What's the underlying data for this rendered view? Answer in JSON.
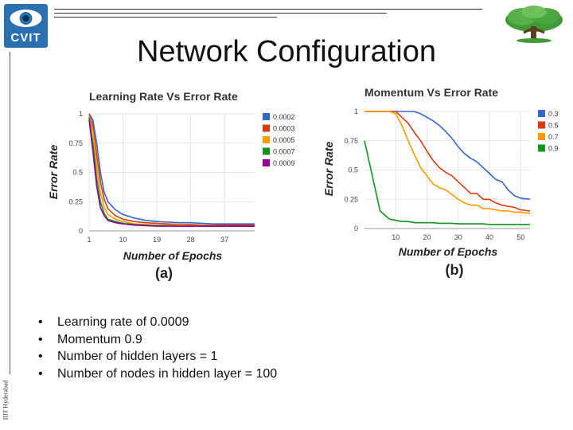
{
  "header": {
    "logo_text": "CVIT",
    "title": "Network Configuration"
  },
  "sidebar": {
    "vertical_text": "IIIT Hyderabad"
  },
  "bullets": [
    "Learning rate of 0.0009",
    "Momentum 0.9",
    "Number of hidden layers = 1",
    "Number of nodes in hidden layer = 100"
  ],
  "bullet_symbol": "•",
  "chart_data": [
    {
      "type": "line",
      "title": "Learning Rate Vs Error Rate",
      "xlabel": "Number of Epochs",
      "ylabel": "Error Rate",
      "caption": "(a)",
      "x_ticks": [
        "1",
        "10",
        "19",
        "28",
        "37"
      ],
      "x_tick_values": [
        1,
        10,
        19,
        28,
        37
      ],
      "y_ticks": [
        "0",
        "0.25",
        "0.5",
        "0.75",
        "1"
      ],
      "xlim": [
        1,
        45
      ],
      "ylim": [
        0,
        1
      ],
      "legend": "right",
      "grid": true,
      "x": [
        1,
        2,
        3,
        4,
        5,
        6,
        8,
        10,
        13,
        16,
        19,
        22,
        25,
        28,
        31,
        34,
        37,
        40,
        45
      ],
      "series": [
        {
          "name": "0.0002",
          "color": "#3366cc",
          "values": [
            1.0,
            0.95,
            0.75,
            0.5,
            0.33,
            0.25,
            0.18,
            0.14,
            0.11,
            0.09,
            0.08,
            0.075,
            0.07,
            0.07,
            0.065,
            0.06,
            0.06,
            0.06,
            0.06
          ]
        },
        {
          "name": "0.0003",
          "color": "#dc3912",
          "values": [
            1.0,
            0.9,
            0.65,
            0.42,
            0.27,
            0.19,
            0.13,
            0.1,
            0.08,
            0.07,
            0.065,
            0.06,
            0.055,
            0.055,
            0.05,
            0.05,
            0.05,
            0.05,
            0.05
          ]
        },
        {
          "name": "0.0005",
          "color": "#ff9900",
          "values": [
            0.98,
            0.85,
            0.55,
            0.33,
            0.2,
            0.14,
            0.1,
            0.08,
            0.06,
            0.055,
            0.05,
            0.05,
            0.05,
            0.045,
            0.045,
            0.045,
            0.04,
            0.04,
            0.04
          ]
        },
        {
          "name": "0.0007",
          "color": "#109618",
          "values": [
            0.97,
            0.75,
            0.45,
            0.25,
            0.15,
            0.1,
            0.08,
            0.065,
            0.055,
            0.05,
            0.045,
            0.045,
            0.04,
            0.04,
            0.04,
            0.04,
            0.04,
            0.04,
            0.04
          ]
        },
        {
          "name": "0.0009",
          "color": "#990099",
          "values": [
            0.95,
            0.68,
            0.38,
            0.2,
            0.13,
            0.09,
            0.07,
            0.06,
            0.05,
            0.045,
            0.04,
            0.04,
            0.04,
            0.04,
            0.04,
            0.04,
            0.04,
            0.04,
            0.04
          ]
        }
      ]
    },
    {
      "type": "line",
      "title": "Momentum Vs Error Rate",
      "xlabel": "Number of Epochs",
      "ylabel": "Error Rate",
      "caption": "(b)",
      "x_ticks": [
        "10",
        "20",
        "30",
        "40",
        "50"
      ],
      "x_tick_values": [
        10,
        20,
        30,
        40,
        50
      ],
      "y_ticks": [
        "0",
        "0.25",
        "0.5",
        "0.75",
        "1"
      ],
      "xlim": [
        0,
        53
      ],
      "ylim": [
        0,
        1
      ],
      "legend": "right",
      "grid": true,
      "x": [
        0,
        5,
        8,
        10,
        12,
        14,
        16,
        18,
        20,
        22,
        24,
        26,
        28,
        30,
        32,
        34,
        36,
        38,
        40,
        42,
        44,
        46,
        48,
        50,
        53
      ],
      "series": [
        {
          "name": "0.3",
          "color": "#3366cc",
          "values": [
            1.0,
            1.0,
            1.0,
            1.0,
            1.0,
            1.0,
            1.0,
            0.98,
            0.95,
            0.92,
            0.88,
            0.83,
            0.77,
            0.7,
            0.64,
            0.6,
            0.57,
            0.52,
            0.47,
            0.42,
            0.4,
            0.33,
            0.28,
            0.26,
            0.25
          ]
        },
        {
          "name": "0.5",
          "color": "#dc3912",
          "values": [
            1.0,
            1.0,
            1.0,
            1.0,
            0.95,
            0.9,
            0.82,
            0.75,
            0.66,
            0.58,
            0.52,
            0.48,
            0.45,
            0.4,
            0.35,
            0.3,
            0.3,
            0.25,
            0.25,
            0.22,
            0.2,
            0.19,
            0.18,
            0.16,
            0.15
          ]
        },
        {
          "name": "0.7",
          "color": "#ff9900",
          "values": [
            1.0,
            1.0,
            1.0,
            0.98,
            0.88,
            0.75,
            0.63,
            0.52,
            0.45,
            0.38,
            0.35,
            0.33,
            0.29,
            0.25,
            0.22,
            0.2,
            0.2,
            0.17,
            0.17,
            0.16,
            0.15,
            0.15,
            0.14,
            0.14,
            0.13
          ]
        },
        {
          "name": "0.9",
          "color": "#109618",
          "values": [
            0.75,
            0.15,
            0.08,
            0.07,
            0.06,
            0.06,
            0.05,
            0.05,
            0.05,
            0.05,
            0.045,
            0.045,
            0.045,
            0.04,
            0.04,
            0.04,
            0.04,
            0.04,
            0.035,
            0.035,
            0.035,
            0.035,
            0.035,
            0.035,
            0.035
          ]
        }
      ]
    }
  ]
}
